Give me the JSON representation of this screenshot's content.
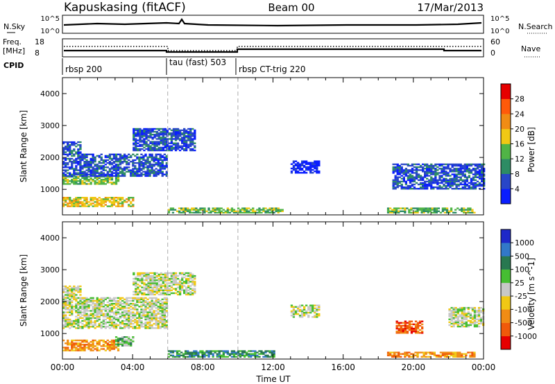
{
  "header": {
    "station": "Kapuskasing (fitACF)",
    "beam": "Beam 00",
    "date": "17/Mar/2013"
  },
  "strips": {
    "nsky": {
      "label": "N.Sky",
      "ticks": [
        "10^5",
        "10^0"
      ]
    },
    "nsearch": {
      "label": "N.Search",
      "ticks": [
        "10^5",
        "10^0"
      ]
    },
    "freq": {
      "label1": "Freq.",
      "label2": "[MHz]",
      "ticks": [
        "18",
        "8"
      ]
    },
    "nave": {
      "label": "Nave",
      "ticks": [
        "60",
        "0"
      ]
    },
    "cpid": {
      "label": "CPID",
      "segments": [
        {
          "text": "rbsp 200",
          "start_h": 0
        },
        {
          "text": "tau (fast) 503",
          "start_h": 6
        },
        {
          "text": "rbsp CT-trig 220",
          "start_h": 10
        }
      ]
    }
  },
  "chart_data": [
    {
      "type": "heatmap",
      "title": "",
      "xlabel": "Time UT",
      "ylabel": "Slant Range [km]",
      "x_ticks": [
        "00:00",
        "04:00",
        "08:00",
        "12:00",
        "16:00",
        "20:00",
        "00:00"
      ],
      "x_range_h": [
        0,
        24
      ],
      "ylim": [
        200,
        4500
      ],
      "y_ticks": [
        1000,
        2000,
        3000,
        4000
      ],
      "colorbar": {
        "label": "Power [dB]",
        "ticks": [
          "4",
          "8",
          "12",
          "16",
          "20",
          "24",
          "28"
        ],
        "colors": [
          "#0a1eff",
          "#2846c8",
          "#2d8c64",
          "#50b446",
          "#f0c814",
          "#f08c14",
          "#ff5a0a",
          "#e60000"
        ]
      },
      "regions": [
        {
          "t0": 0.0,
          "t1": 4.0,
          "r0": 450,
          "r1": 750,
          "level": 4
        },
        {
          "t0": 0.0,
          "t1": 3.2,
          "r0": 1150,
          "r1": 1400,
          "level": 3
        },
        {
          "t0": 0.0,
          "t1": 6.0,
          "r0": 1400,
          "r1": 2100,
          "level": 1
        },
        {
          "t0": 0.0,
          "t1": 1.0,
          "r0": 2100,
          "r1": 2500,
          "level": 1
        },
        {
          "t0": 4.0,
          "t1": 7.5,
          "r0": 2200,
          "r1": 2900,
          "level": 1
        },
        {
          "t0": 6.0,
          "t1": 12.5,
          "r0": 250,
          "r1": 420,
          "level": 3
        },
        {
          "t0": 13.0,
          "t1": 14.6,
          "r0": 1500,
          "r1": 1900,
          "level": 0
        },
        {
          "t0": 18.5,
          "t1": 23.5,
          "r0": 250,
          "r1": 400,
          "level": 3
        },
        {
          "t0": 18.8,
          "t1": 24.0,
          "r0": 1000,
          "r1": 1800,
          "level": 1
        }
      ]
    },
    {
      "type": "heatmap",
      "title": "",
      "xlabel": "Time UT",
      "ylabel": "Slant Range [km]",
      "x_ticks": [
        "00:00",
        "04:00",
        "08:00",
        "12:00",
        "16:00",
        "20:00",
        "00:00"
      ],
      "x_range_h": [
        0,
        24
      ],
      "ylim": [
        200,
        4500
      ],
      "y_ticks": [
        1000,
        2000,
        3000,
        4000
      ],
      "colorbar": {
        "label": "Velocity [m s^-1]",
        "ticks": [
          "1000",
          "500",
          "100",
          "25",
          "-25",
          "-100",
          "-500",
          "-1000"
        ],
        "colors": [
          "#1e28c8",
          "#3278c8",
          "#287850",
          "#46be32",
          "#c8c8c8",
          "#f0c814",
          "#f08c14",
          "#f05a0a",
          "#e60000"
        ]
      },
      "regions": [
        {
          "t0": 0.0,
          "t1": 3.2,
          "r0": 450,
          "r1": 800,
          "level": 6
        },
        {
          "t0": 3.0,
          "t1": 4.0,
          "r0": 600,
          "r1": 900,
          "level": 3
        },
        {
          "t0": 0.0,
          "t1": 6.0,
          "r0": 1150,
          "r1": 2100,
          "level": 4
        },
        {
          "t0": 0.0,
          "t1": 1.0,
          "r0": 2100,
          "r1": 2500,
          "level": 4
        },
        {
          "t0": 4.0,
          "t1": 7.5,
          "r0": 2200,
          "r1": 2900,
          "level": 4
        },
        {
          "t0": 6.0,
          "t1": 12.0,
          "r0": 250,
          "r1": 450,
          "level": 2
        },
        {
          "t0": 13.0,
          "t1": 14.6,
          "r0": 1500,
          "r1": 1900,
          "level": 4
        },
        {
          "t0": 19.0,
          "t1": 20.5,
          "r0": 1000,
          "r1": 1400,
          "level": 7
        },
        {
          "t0": 18.5,
          "t1": 23.5,
          "r0": 250,
          "r1": 400,
          "level": 6
        },
        {
          "t0": 22.0,
          "t1": 24.0,
          "r0": 1200,
          "r1": 1800,
          "level": 4
        }
      ]
    }
  ]
}
